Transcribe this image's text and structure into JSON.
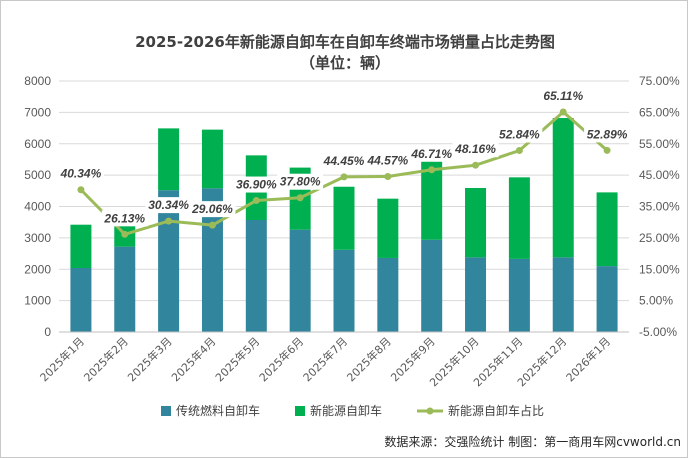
{
  "chart_data": {
    "type": "bar",
    "title": "2025-2026年新能源自卸车在自卸车终端市场销量占比走势图",
    "subtitle": "（单位：辆）",
    "categories": [
      "2025年1月",
      "2025年2月",
      "2025年3月",
      "2025年4月",
      "2025年5月",
      "2025年6月",
      "2025年7月",
      "2025年8月",
      "2025年9月",
      "2025年10月",
      "2025年11月",
      "2025年12月",
      "2026年1月"
    ],
    "series": [
      {
        "name": "传统燃料自卸车",
        "type": "stacked-bar",
        "color": "#31859c",
        "values": [
          2040,
          2720,
          4520,
          4580,
          3570,
          3260,
          2620,
          2360,
          2940,
          2380,
          2330,
          2380,
          2100
        ]
      },
      {
        "name": "新能源自卸车",
        "type": "stacked-bar",
        "color": "#00b050",
        "values": [
          1380,
          960,
          1970,
          1870,
          2060,
          1980,
          2010,
          1890,
          2570,
          2210,
          2600,
          4440,
          2350
        ]
      },
      {
        "name": "新能源自卸车占比",
        "type": "line",
        "color": "#9bbb59",
        "axis": "right",
        "values": [
          40.34,
          26.13,
          30.34,
          29.06,
          36.9,
          37.8,
          44.45,
          44.57,
          46.71,
          48.16,
          52.84,
          65.11,
          52.89
        ],
        "labels": [
          "40.34%",
          "26.13%",
          "30.34%",
          "29.06%",
          "36.90%",
          "37.80%",
          "44.45%",
          "44.57%",
          "46.71%",
          "48.16%",
          "52.84%",
          "65.11%",
          "52.89%"
        ]
      }
    ],
    "y_left": {
      "min": 0,
      "max": 8000,
      "ticks": [
        "0",
        "1000",
        "2000",
        "3000",
        "4000",
        "5000",
        "6000",
        "7000",
        "8000"
      ]
    },
    "y_right": {
      "min": -5,
      "max": 75,
      "ticks": [
        "-5.00%",
        "5.00%",
        "15.00%",
        "25.00%",
        "35.00%",
        "45.00%",
        "55.00%",
        "65.00%",
        "75.00%"
      ]
    },
    "grid": true,
    "legend_position": "bottom",
    "footer": "数据来源：交强险统计  制图：第一商用车网cvworld.cn"
  }
}
